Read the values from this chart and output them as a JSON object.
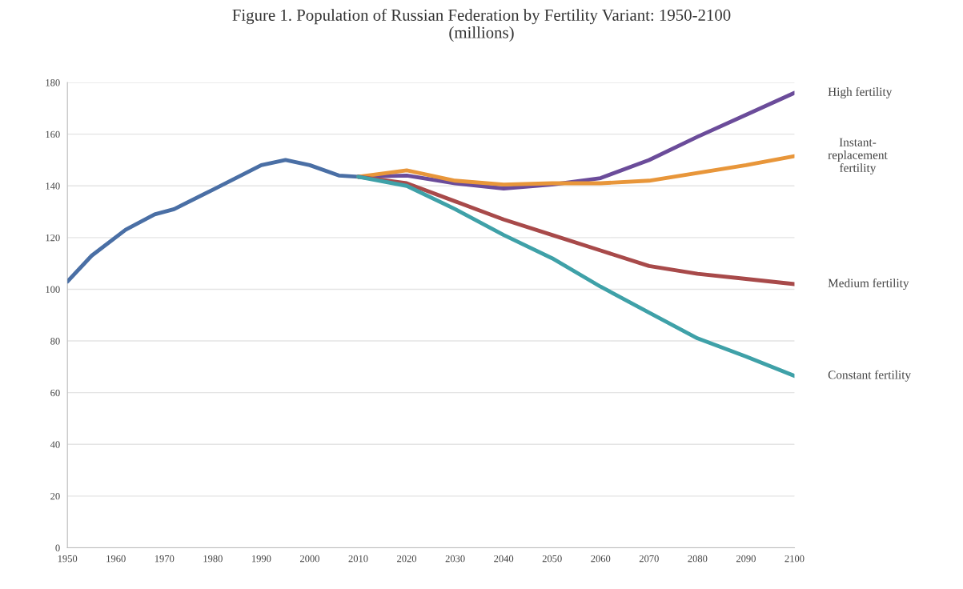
{
  "chart_data": {
    "type": "line",
    "title": "Figure 1. Population of Russian Federation by Fertility Variant: 1950-2100\n(millions)",
    "xlim": [
      1950,
      2100
    ],
    "xticks": [
      1950,
      1960,
      1970,
      1980,
      1990,
      2000,
      2010,
      2020,
      2030,
      2040,
      2050,
      2060,
      2070,
      2080,
      2090,
      2100
    ],
    "ylim": [
      0,
      180
    ],
    "yticks": [
      0,
      20,
      40,
      60,
      80,
      100,
      120,
      140,
      160,
      180
    ],
    "grid": "y",
    "legend": false,
    "series": [
      {
        "color": "#4a6fa5",
        "x": [
          1950,
          1955,
          1962,
          1968,
          1972,
          1980,
          1990,
          1995,
          2000,
          2006,
          2010
        ],
        "values": [
          103,
          113,
          123,
          129,
          131,
          138.5,
          148,
          150,
          148,
          144,
          143.5
        ]
      },
      {
        "name": "High fertility",
        "color": "#6b4c9a",
        "x": [
          2010,
          2020,
          2030,
          2040,
          2050,
          2060,
          2070,
          2080,
          2090,
          2100
        ],
        "values": [
          143.5,
          144,
          141,
          139,
          140.5,
          143,
          150,
          159,
          167.5,
          176
        ]
      },
      {
        "name": "Instant-\nreplacement\nfertility",
        "color": "#e8963a",
        "x": [
          2010,
          2020,
          2030,
          2040,
          2050,
          2060,
          2070,
          2080,
          2090,
          2100
        ],
        "values": [
          143.5,
          146,
          142,
          140.5,
          141,
          141,
          142,
          145,
          148,
          151.5
        ]
      },
      {
        "name": "Medium fertility",
        "color": "#a84a4a",
        "x": [
          2010,
          2020,
          2030,
          2040,
          2050,
          2060,
          2070,
          2080,
          2090,
          2100
        ],
        "values": [
          143.5,
          141,
          134,
          127,
          121,
          115,
          109,
          106,
          104,
          102
        ]
      },
      {
        "name": "Constant fertility",
        "color": "#3fa1a8",
        "x": [
          2010,
          2020,
          2030,
          2040,
          2050,
          2060,
          2070,
          2080,
          2090,
          2100
        ],
        "values": [
          143.5,
          140,
          131,
          121,
          112,
          101,
          91,
          81,
          74,
          66.5
        ]
      }
    ]
  }
}
